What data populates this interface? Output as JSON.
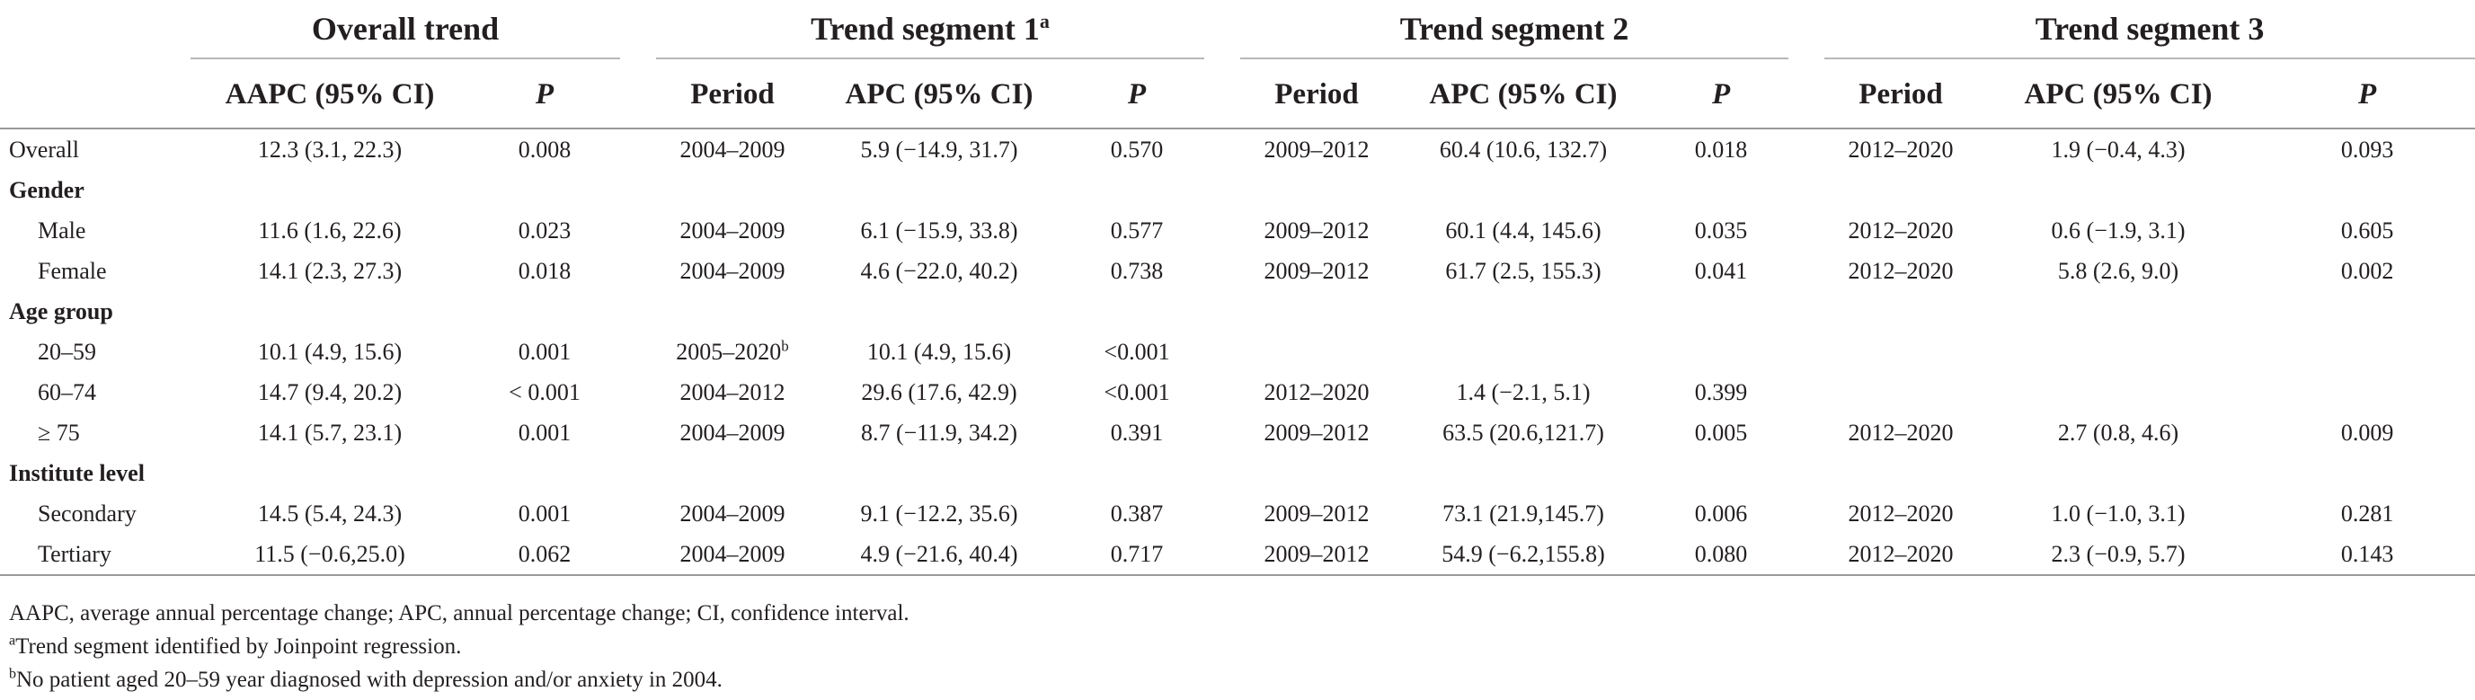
{
  "groups": [
    {
      "label": "Overall trend",
      "sup": ""
    },
    {
      "label": "Trend segment 1",
      "sup": "a"
    },
    {
      "label": "Trend segment 2",
      "sup": ""
    },
    {
      "label": "Trend segment 3",
      "sup": ""
    }
  ],
  "subheaders": {
    "aapc": "AAPC (95% CI)",
    "p": "P",
    "period": "Period",
    "apc": "APC (95% CI)"
  },
  "rows": [
    {
      "label": "Overall",
      "section": false,
      "indent": false,
      "cells": [
        "12.3 (3.1, 22.3)",
        "0.008",
        "2004–2009",
        "",
        "5.9 (−14.9, 31.7)",
        "0.570",
        "2009–2012",
        "60.4 (10.6, 132.7)",
        "0.018",
        "2012–2020",
        "1.9 (−0.4, 4.3)",
        "0.093"
      ]
    },
    {
      "label": "Gender",
      "section": true,
      "indent": false,
      "cells": [
        "",
        "",
        "",
        "",
        "",
        "",
        "",
        "",
        "",
        "",
        "",
        ""
      ]
    },
    {
      "label": "Male",
      "section": false,
      "indent": true,
      "cells": [
        "11.6 (1.6, 22.6)",
        "0.023",
        "2004–2009",
        "",
        "6.1 (−15.9, 33.8)",
        "0.577",
        "2009–2012",
        "60.1 (4.4, 145.6)",
        "0.035",
        "2012–2020",
        "0.6 (−1.9, 3.1)",
        "0.605"
      ]
    },
    {
      "label": "Female",
      "section": false,
      "indent": true,
      "cells": [
        "14.1 (2.3, 27.3)",
        "0.018",
        "2004–2009",
        "",
        "4.6 (−22.0, 40.2)",
        "0.738",
        "2009–2012",
        "61.7 (2.5, 155.3)",
        "0.041",
        "2012–2020",
        "5.8 (2.6, 9.0)",
        "0.002"
      ]
    },
    {
      "label": "Age group",
      "section": true,
      "indent": false,
      "cells": [
        "",
        "",
        "",
        "",
        "",
        "",
        "",
        "",
        "",
        "",
        "",
        ""
      ]
    },
    {
      "label": "20–59",
      "section": false,
      "indent": true,
      "cells": [
        "10.1 (4.9, 15.6)",
        "0.001",
        "2005–2020",
        "b",
        "10.1 (4.9, 15.6)",
        "<0.001",
        "",
        "",
        "",
        "",
        "",
        ""
      ]
    },
    {
      "label": "60–74",
      "section": false,
      "indent": true,
      "cells": [
        "14.7 (9.4, 20.2)",
        "< 0.001",
        "2004–2012",
        "",
        "29.6 (17.6, 42.9)",
        "<0.001",
        "2012–2020",
        "1.4 (−2.1, 5.1)",
        "0.399",
        "",
        "",
        ""
      ]
    },
    {
      "label": "≥ 75",
      "section": false,
      "indent": true,
      "cells": [
        "14.1 (5.7, 23.1)",
        "0.001",
        "2004–2009",
        "",
        "8.7 (−11.9, 34.2)",
        "0.391",
        "2009–2012",
        "63.5 (20.6,121.7)",
        "0.005",
        "2012–2020",
        "2.7 (0.8, 4.6)",
        "0.009"
      ]
    },
    {
      "label": "Institute level",
      "section": true,
      "indent": false,
      "cells": [
        "",
        "",
        "",
        "",
        "",
        "",
        "",
        "",
        "",
        "",
        "",
        ""
      ]
    },
    {
      "label": "Secondary",
      "section": false,
      "indent": true,
      "cells": [
        "14.5 (5.4, 24.3)",
        "0.001",
        "2004–2009",
        "",
        "9.1 (−12.2, 35.6)",
        "0.387",
        "2009–2012",
        "73.1 (21.9,145.7)",
        "0.006",
        "2012–2020",
        "1.0 (−1.0, 3.1)",
        "0.281"
      ]
    },
    {
      "label": "Tertiary",
      "section": false,
      "indent": true,
      "cells": [
        "11.5 (−0.6,25.0)",
        "0.062",
        "2004–2009",
        "",
        "4.9 (−21.6, 40.4)",
        "0.717",
        "2009–2012",
        "54.9 (−6.2,155.8)",
        "0.080",
        "2012–2020",
        "2.3 (−0.9, 5.7)",
        "0.143"
      ]
    }
  ],
  "notes": {
    "abbrev": "AAPC, average annual percentage change; APC, annual percentage change; CI, confidence interval.",
    "a_sup": "a",
    "a_text": "Trend segment identified by Joinpoint regression.",
    "b_sup": "b",
    "b_text": "No patient aged 20–59 year diagnosed with depression and/or anxiety in 2004."
  }
}
